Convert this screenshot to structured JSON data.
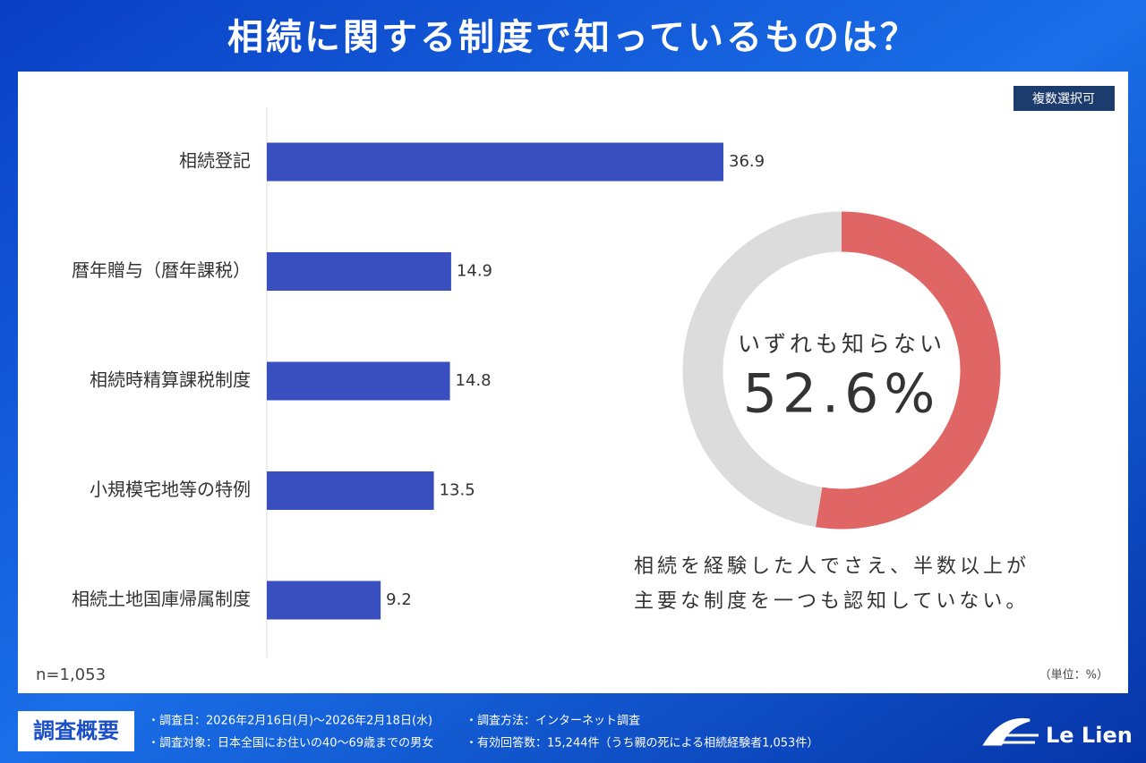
{
  "header": {
    "title": "相続に関する制度で知っているものは？",
    "badge": "複数選択可"
  },
  "chart_data": [
    {
      "type": "hbar",
      "categories": [
        "相続登記",
        "暦年贈与（暦年課税）",
        "相続時精算課税制度",
        "小規模宅地等の特例",
        "相続土地国庫帰属制度"
      ],
      "values": [
        36.9,
        14.9,
        14.8,
        13.5,
        9.2
      ],
      "color": "#3a4fbf",
      "note": "n=1,053",
      "unit": "（単位：%）"
    },
    {
      "type": "donut",
      "categories": [
        "いずれも知らない"
      ],
      "values": [
        52.6
      ],
      "value_labels": [
        "52.6%"
      ],
      "color": "#e06666",
      "track_color": "#dcdcdc"
    }
  ],
  "caption": [
    "相続を経験した人でさえ、半数以上が",
    "主要な制度を一つも認知していない。"
  ],
  "footer": {
    "heading": "調査概要",
    "items": [
      "・調査日：2026年2月16日(月)～2026年2月18日(水)",
      "・調査方法：インターネット調査",
      "・調査対象：日本全国にお住いの40～69歳までの男女",
      "・有効回答数：15,244件（うち親の死による相続経験者1,053件）"
    ],
    "logo": "Le Lien"
  }
}
